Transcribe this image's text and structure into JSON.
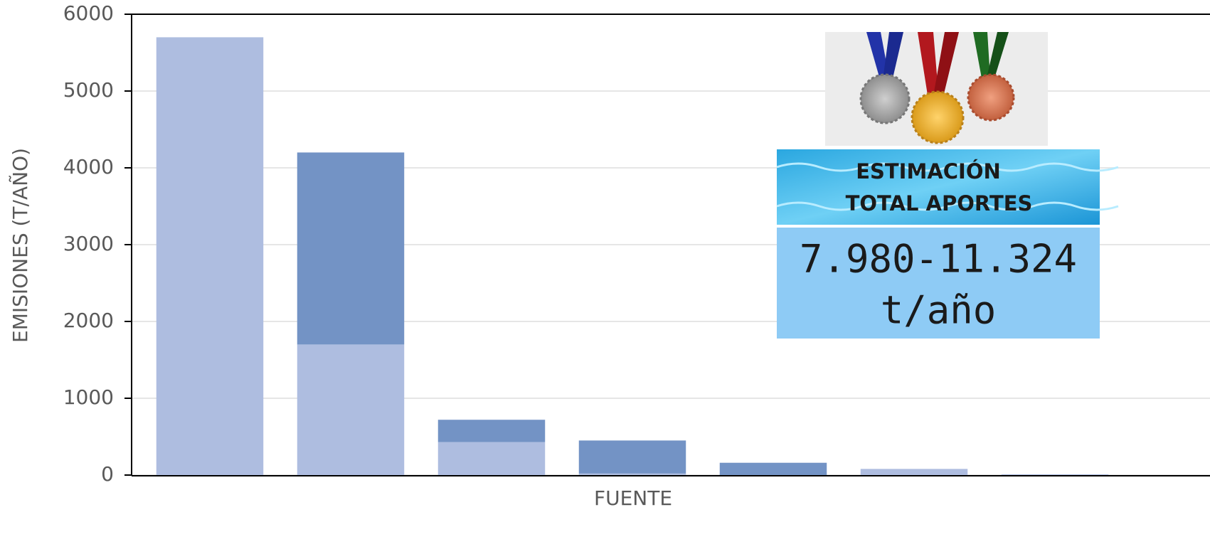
{
  "chart_data": {
    "type": "bar",
    "stacked": true,
    "y_label": "EMISIONES (T/AÑO)",
    "x_label": "FUENTE",
    "categories": [
      null,
      null,
      null,
      null,
      null,
      null,
      null
    ],
    "series": [
      {
        "color": "#aebde0",
        "values": [
          5700,
          1700,
          430,
          20,
          0,
          80,
          10
        ]
      },
      {
        "color": "#7393c5",
        "values": [
          0,
          2500,
          290,
          430,
          160,
          0,
          0
        ]
      }
    ],
    "ylim": [
      0,
      6000
    ],
    "yticks": [
      0,
      1000,
      2000,
      3000,
      4000,
      5000,
      6000
    ],
    "grid": true,
    "annotation": {
      "heading": [
        "ESTIMACIÓN",
        "TOTAL APORTES"
      ],
      "value": [
        "7.980-11.324",
        "t/año"
      ]
    }
  }
}
